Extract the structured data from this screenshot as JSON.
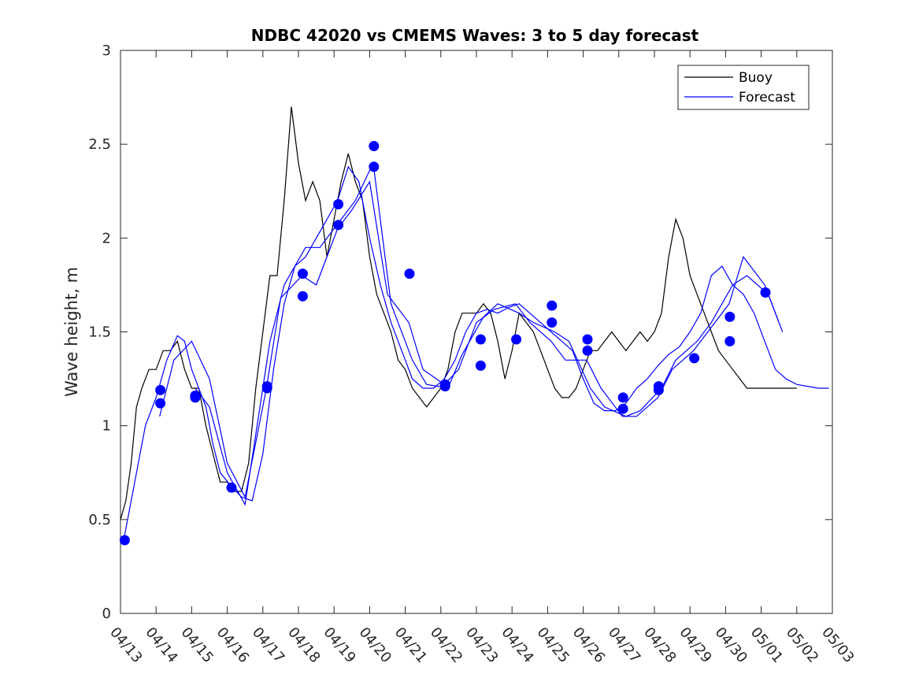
{
  "chart_data": {
    "type": "line",
    "title": "NDBC 42020 vs CMEMS Waves: 3 to 5 day forecast",
    "xlabel": "",
    "ylabel": "Wave height, m",
    "xlim": [
      "04/13",
      "05/03"
    ],
    "ylim": [
      0,
      3
    ],
    "x_ticks": [
      "04/13",
      "04/14",
      "04/15",
      "04/16",
      "04/17",
      "04/18",
      "04/19",
      "04/20",
      "04/21",
      "04/22",
      "04/23",
      "04/24",
      "04/25",
      "04/26",
      "04/27",
      "04/28",
      "04/29",
      "04/30",
      "05/01",
      "05/02",
      "05/03"
    ],
    "y_ticks": [
      "0",
      "0.5",
      "1",
      "1.5",
      "2",
      "2.5",
      "3"
    ],
    "grid": false,
    "legend": {
      "position": "top-right",
      "entries": [
        "Buoy",
        "Forecast"
      ]
    },
    "colors": {
      "buoy": "#000000",
      "forecast": "#0000ff",
      "markers": "#0000ff"
    },
    "series": [
      {
        "name": "Buoy",
        "x": [
          0,
          0.15,
          0.3,
          0.45,
          0.6,
          0.8,
          1.0,
          1.2,
          1.4,
          1.6,
          1.8,
          2.0,
          2.2,
          2.4,
          2.6,
          2.8,
          3.0,
          3.2,
          3.4,
          3.6,
          3.8,
          4.0,
          4.2,
          4.4,
          4.6,
          4.8,
          5.0,
          5.2,
          5.4,
          5.6,
          5.8,
          6.0,
          6.2,
          6.4,
          6.6,
          6.8,
          7.0,
          7.2,
          7.4,
          7.6,
          7.8,
          8.0,
          8.2,
          8.4,
          8.6,
          8.8,
          9.0,
          9.2,
          9.4,
          9.6,
          9.8,
          10.0,
          10.2,
          10.4,
          10.6,
          10.8,
          11.0,
          11.2,
          11.4,
          11.6,
          11.8,
          12.0,
          12.2,
          12.4,
          12.6,
          12.8,
          13.0,
          13.2,
          13.4,
          13.6,
          13.8,
          14.0,
          14.2,
          14.4,
          14.6,
          14.8,
          15.0,
          15.2,
          15.4,
          15.6,
          15.8,
          16.0,
          16.2,
          16.4,
          16.6,
          16.8,
          17.0,
          17.2,
          17.4,
          17.6,
          17.8,
          18.0,
          18.2,
          18.4,
          18.6,
          18.8,
          19.0
        ],
        "values": [
          0.5,
          0.6,
          0.8,
          1.1,
          1.2,
          1.3,
          1.3,
          1.4,
          1.4,
          1.45,
          1.3,
          1.2,
          1.2,
          1.0,
          0.85,
          0.7,
          0.7,
          0.65,
          0.65,
          0.8,
          1.2,
          1.5,
          1.8,
          1.8,
          2.2,
          2.7,
          2.4,
          2.2,
          2.3,
          2.2,
          1.9,
          2.1,
          2.3,
          2.45,
          2.3,
          2.2,
          1.9,
          1.7,
          1.6,
          1.5,
          1.35,
          1.3,
          1.2,
          1.15,
          1.1,
          1.15,
          1.2,
          1.3,
          1.5,
          1.6,
          1.6,
          1.6,
          1.65,
          1.6,
          1.45,
          1.25,
          1.4,
          1.6,
          1.55,
          1.5,
          1.4,
          1.3,
          1.2,
          1.15,
          1.15,
          1.2,
          1.3,
          1.4,
          1.4,
          1.45,
          1.5,
          1.45,
          1.4,
          1.45,
          1.5,
          1.45,
          1.5,
          1.6,
          1.9,
          2.1,
          2.0,
          1.8,
          1.7,
          1.6,
          1.5,
          1.4,
          1.35,
          1.3,
          1.25,
          1.2,
          1.2,
          1.2,
          1.2,
          1.2,
          1.2,
          1.2,
          1.2
        ],
        "color": "#000000"
      },
      {
        "name": "Forecast",
        "x": [
          0.1,
          0.4,
          0.7,
          1.0,
          1.3,
          1.6,
          1.8,
          2.0,
          2.2,
          2.4,
          2.6,
          2.8,
          3.1,
          3.4,
          3.7,
          4.0,
          4.3,
          4.6,
          4.9,
          5.2,
          5.5,
          5.8,
          6.1,
          6.4,
          6.7,
          7.0,
          7.3,
          7.6,
          7.9,
          8.2,
          8.5,
          8.8,
          9.1,
          9.4,
          9.7,
          10.0,
          10.3,
          10.6,
          10.9,
          11.2,
          11.5,
          11.8,
          12.1,
          12.4,
          12.7,
          13.0,
          13.3,
          13.6,
          13.9,
          14.2,
          14.5,
          14.8,
          15.1,
          15.4,
          15.7,
          16.0,
          16.3,
          16.6,
          16.9,
          17.2,
          17.5,
          17.8,
          18.1,
          18.4,
          18.7,
          19.0,
          19.3,
          19.6,
          19.9
        ],
        "values": [
          0.4,
          0.7,
          1.0,
          1.15,
          1.35,
          1.48,
          1.45,
          1.3,
          1.2,
          1.1,
          0.9,
          0.75,
          0.68,
          0.62,
          0.6,
          0.85,
          1.3,
          1.65,
          1.85,
          1.9,
          2.0,
          2.1,
          2.2,
          2.38,
          2.3,
          2.0,
          1.75,
          1.55,
          1.4,
          1.25,
          1.2,
          1.2,
          1.25,
          1.35,
          1.5,
          1.6,
          1.62,
          1.6,
          1.63,
          1.65,
          1.6,
          1.55,
          1.5,
          1.45,
          1.4,
          1.25,
          1.12,
          1.08,
          1.08,
          1.12,
          1.2,
          1.25,
          1.32,
          1.38,
          1.42,
          1.5,
          1.6,
          1.8,
          1.85,
          1.75,
          1.7,
          1.6,
          1.45,
          1.3,
          1.25,
          1.22,
          1.21,
          1.2,
          1.2
        ],
        "color": "#0000ff"
      },
      {
        "name": "",
        "x": [
          1.1,
          1.5,
          2.0,
          2.5,
          3.0,
          3.5,
          4.1,
          4.5,
          5.1,
          5.5,
          6.1,
          6.5,
          7.0,
          7.5,
          8.1,
          8.5,
          9.1,
          9.5,
          10.0,
          10.5,
          11.1,
          11.5,
          12.1,
          12.5,
          13.1,
          13.5,
          14.1,
          14.5,
          15.1,
          15.5,
          16.1,
          16.5,
          17.1,
          17.5,
          18.1,
          18.5
        ],
        "values": [
          1.05,
          1.35,
          1.45,
          1.25,
          0.8,
          0.62,
          1.2,
          1.68,
          1.8,
          1.75,
          2.05,
          2.15,
          2.3,
          1.7,
          1.55,
          1.3,
          1.22,
          1.3,
          1.55,
          1.62,
          1.65,
          1.55,
          1.45,
          1.35,
          1.35,
          1.2,
          1.05,
          1.05,
          1.15,
          1.3,
          1.4,
          1.5,
          1.65,
          1.9,
          1.75,
          1.55
        ],
        "color": "#0000ff"
      },
      {
        "name": "",
        "x": [
          2.1,
          2.5,
          3.0,
          3.5,
          4.2,
          4.6,
          5.2,
          5.6,
          6.2,
          6.6,
          7.1,
          7.6,
          8.2,
          8.6,
          9.2,
          9.6,
          10.2,
          10.6,
          11.2,
          11.6,
          12.2,
          12.6,
          13.2,
          13.6,
          14.2,
          14.6,
          15.2,
          15.6,
          16.2,
          16.6,
          17.2,
          17.6,
          18.2,
          18.6
        ],
        "values": [
          1.2,
          1.1,
          0.75,
          0.58,
          1.45,
          1.75,
          1.95,
          1.95,
          2.1,
          2.2,
          2.4,
          1.65,
          1.35,
          1.22,
          1.2,
          1.38,
          1.58,
          1.65,
          1.6,
          1.55,
          1.5,
          1.45,
          1.2,
          1.1,
          1.05,
          1.08,
          1.2,
          1.35,
          1.45,
          1.55,
          1.75,
          1.8,
          1.7,
          1.5
        ],
        "color": "#0000ff"
      }
    ],
    "markers": [
      {
        "x": 0.12,
        "y": 0.39
      },
      {
        "x": 1.12,
        "y": 1.19
      },
      {
        "x": 1.12,
        "y": 1.12
      },
      {
        "x": 2.1,
        "y": 1.16
      },
      {
        "x": 2.1,
        "y": 1.15
      },
      {
        "x": 3.12,
        "y": 0.67
      },
      {
        "x": 4.12,
        "y": 1.21
      },
      {
        "x": 4.12,
        "y": 1.2
      },
      {
        "x": 5.12,
        "y": 1.81
      },
      {
        "x": 5.12,
        "y": 1.69
      },
      {
        "x": 6.12,
        "y": 2.18
      },
      {
        "x": 6.12,
        "y": 2.07
      },
      {
        "x": 7.12,
        "y": 2.49
      },
      {
        "x": 7.12,
        "y": 2.38
      },
      {
        "x": 8.12,
        "y": 1.81
      },
      {
        "x": 9.12,
        "y": 1.22
      },
      {
        "x": 9.12,
        "y": 1.21
      },
      {
        "x": 10.12,
        "y": 1.46
      },
      {
        "x": 10.12,
        "y": 1.32
      },
      {
        "x": 11.12,
        "y": 1.46
      },
      {
        "x": 12.12,
        "y": 1.64
      },
      {
        "x": 12.12,
        "y": 1.55
      },
      {
        "x": 13.12,
        "y": 1.46
      },
      {
        "x": 13.12,
        "y": 1.4
      },
      {
        "x": 14.12,
        "y": 1.15
      },
      {
        "x": 14.12,
        "y": 1.09
      },
      {
        "x": 15.12,
        "y": 1.21
      },
      {
        "x": 15.12,
        "y": 1.19
      },
      {
        "x": 16.12,
        "y": 1.36
      },
      {
        "x": 17.12,
        "y": 1.58
      },
      {
        "x": 17.12,
        "y": 1.45
      },
      {
        "x": 18.12,
        "y": 1.71
      }
    ]
  }
}
